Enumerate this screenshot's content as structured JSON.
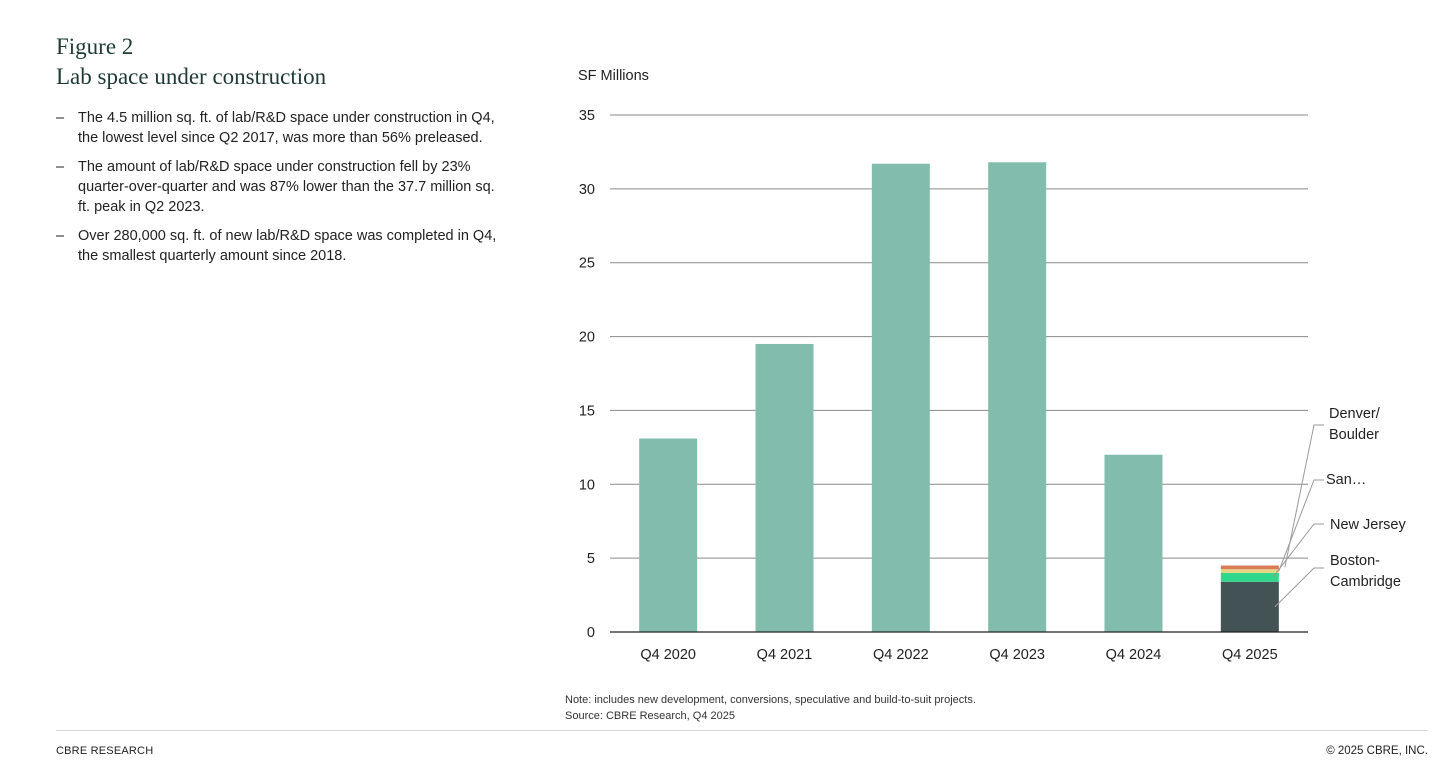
{
  "figure": {
    "label": "Figure 2",
    "title": "Lab space under construction"
  },
  "bullets": [
    "The 4.5 million sq. ft. of lab/R&D space under construction in Q4, the lowest level since Q2 2017, was more than 56% preleased.",
    "The amount of lab/R&D space under construction fell by 23% quarter-over-quarter and was 87% lower than the 37.7 million sq. ft. peak in Q2 2023.",
    "Over 280,000 sq. ft. of new lab/R&D space was completed in Q4, the smallest quarterly amount since 2018."
  ],
  "bullet_dash": "–",
  "chart_data": {
    "type": "bar",
    "ylabel": "SF Millions",
    "ylim": [
      0,
      35
    ],
    "yticks": [
      0,
      5,
      10,
      15,
      20,
      25,
      30,
      35
    ],
    "grid": true,
    "categories": [
      "Q4 2020",
      "Q4 2021",
      "Q4 2022",
      "Q4 2023",
      "Q4 2024",
      "Q4 2025"
    ],
    "values": [
      13.1,
      19.5,
      31.7,
      31.8,
      12.0,
      null
    ],
    "bar_color": "#82bcad",
    "stacked_last": {
      "category": "Q4 2025",
      "segments": [
        {
          "name": "Boston-\nCambridge",
          "value": 3.4,
          "color": "#435254"
        },
        {
          "name": "New Jersey",
          "value": 0.6,
          "color": "#2fd78a"
        },
        {
          "name": "San…",
          "value": 0.25,
          "color": "#e8d483"
        },
        {
          "name": "Denver/\nBoulder",
          "value": 0.25,
          "color": "#d77b58"
        }
      ]
    }
  },
  "note": {
    "line1": "Note: includes new development, conversions, speculative and build-to-suit projects.",
    "line2": "Source: CBRE Research, Q4 2025"
  },
  "footer": {
    "left": "CBRE RESEARCH",
    "right": "© 2025 CBRE, INC."
  }
}
